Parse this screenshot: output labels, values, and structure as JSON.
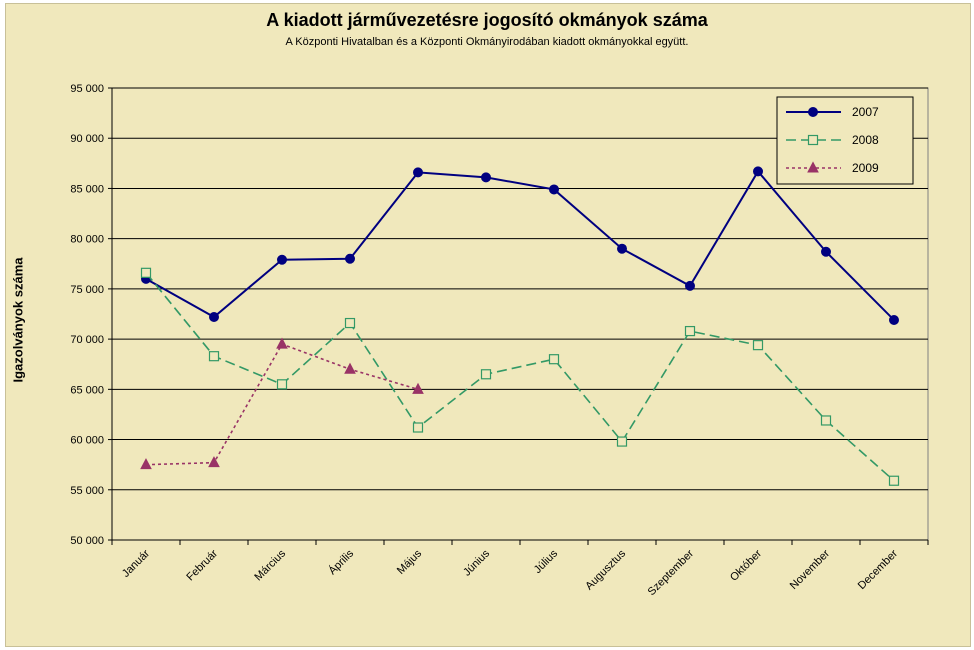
{
  "chart_data": {
    "type": "line",
    "title": "A  kiadott járművezetésre  jogosító okmányok száma",
    "subtitle": "A  Központi Hivatalban és a Központi Okmányirodában kiadott okmányokkal együtt.",
    "xlabel": "",
    "ylabel": "Igazolványok száma",
    "ylim": [
      50000,
      95000
    ],
    "yticks": [
      "50 000",
      "55 000",
      "60 000",
      "65 000",
      "70 000",
      "75 000",
      "80 000",
      "85 000",
      "90 000",
      "95 000"
    ],
    "categories": [
      "Január",
      "Február",
      "Március",
      "Április",
      "Május",
      "Június",
      "Július",
      "Augusztus",
      "Szeptember",
      "Október",
      "November",
      "December"
    ],
    "grid": true,
    "legend_position": "top-right",
    "series": [
      {
        "name": "2007",
        "color": "#000080",
        "marker": "circle",
        "line": "solid",
        "values": [
          76000,
          72200,
          77900,
          78000,
          86600,
          86100,
          84900,
          79000,
          75300,
          86700,
          78700,
          71900
        ]
      },
      {
        "name": "2008",
        "color": "#339966",
        "marker": "square-open",
        "line": "dashed",
        "values": [
          76600,
          68300,
          65500,
          71600,
          61200,
          66500,
          68000,
          59800,
          70800,
          69400,
          61900,
          55900
        ]
      },
      {
        "name": "2009",
        "color": "#993366",
        "marker": "triangle",
        "line": "dotted",
        "values": [
          57500,
          57700,
          69500,
          67000,
          65000,
          null,
          null,
          null,
          null,
          null,
          null,
          null
        ]
      }
    ]
  }
}
